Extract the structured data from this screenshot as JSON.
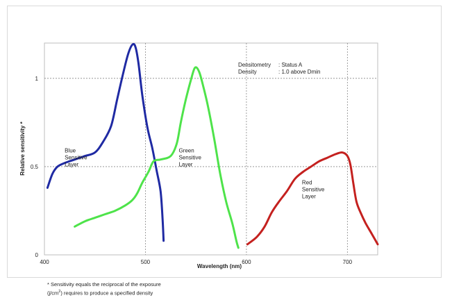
{
  "chart_data": {
    "type": "line",
    "title": "",
    "xlabel": "Wavelength (nm)",
    "ylabel": "Relative sensitivity *",
    "xlim": [
      400,
      730
    ],
    "ylim": [
      0,
      1.2
    ],
    "x_ticks": [
      400,
      500,
      600,
      700
    ],
    "x_tick_labels": [
      "400",
      "500",
      "600",
      "700"
    ],
    "y_ticks": [
      0,
      0.5,
      1
    ],
    "y_tick_labels": [
      "0",
      "0.5",
      "1"
    ],
    "grid": "dashed at 500, 600, 700 nm and at 0.5, 1",
    "notes": [
      {
        "key": "Densitometry",
        "value": ": Status A"
      },
      {
        "key": "Density",
        "value": ": 1.0 above  Dmin"
      }
    ],
    "series": [
      {
        "name": "Blue Sensitive Layer",
        "label_lines": [
          "Blue",
          "Sensitive",
          "Layer"
        ],
        "label_at": [
          420,
          0.58
        ],
        "color": "#1f2aa3",
        "points": [
          [
            403,
            0.38
          ],
          [
            408,
            0.46
          ],
          [
            413,
            0.5
          ],
          [
            420,
            0.52
          ],
          [
            430,
            0.54
          ],
          [
            440,
            0.56
          ],
          [
            450,
            0.58
          ],
          [
            458,
            0.64
          ],
          [
            466,
            0.73
          ],
          [
            472,
            0.88
          ],
          [
            478,
            1.03
          ],
          [
            483,
            1.14
          ],
          [
            487,
            1.19
          ],
          [
            490,
            1.18
          ],
          [
            493,
            1.09
          ],
          [
            497,
            0.9
          ],
          [
            502,
            0.72
          ],
          [
            507,
            0.6
          ],
          [
            511,
            0.48
          ],
          [
            515,
            0.36
          ],
          [
            517,
            0.2
          ],
          [
            518,
            0.08
          ]
        ]
      },
      {
        "name": "Green Sensitive Layer",
        "label_lines": [
          "Green",
          "Sensitive",
          "Layer"
        ],
        "label_at": [
          533,
          0.58
        ],
        "color": "#4ee34a",
        "points": [
          [
            430,
            0.16
          ],
          [
            440,
            0.19
          ],
          [
            450,
            0.21
          ],
          [
            460,
            0.23
          ],
          [
            470,
            0.25
          ],
          [
            480,
            0.28
          ],
          [
            487,
            0.31
          ],
          [
            492,
            0.35
          ],
          [
            497,
            0.41
          ],
          [
            503,
            0.47
          ],
          [
            508,
            0.53
          ],
          [
            515,
            0.54
          ],
          [
            525,
            0.56
          ],
          [
            531,
            0.63
          ],
          [
            535,
            0.75
          ],
          [
            540,
            0.88
          ],
          [
            545,
            0.99
          ],
          [
            549,
            1.06
          ],
          [
            553,
            1.04
          ],
          [
            557,
            0.96
          ],
          [
            562,
            0.84
          ],
          [
            568,
            0.66
          ],
          [
            574,
            0.46
          ],
          [
            580,
            0.3
          ],
          [
            586,
            0.18
          ],
          [
            590,
            0.08
          ],
          [
            592,
            0.04
          ]
        ]
      },
      {
        "name": "Red Sensitive Layer",
        "label_lines": [
          "Red",
          "Sensitive",
          "Layer"
        ],
        "label_at": [
          655,
          0.4
        ],
        "color": "#c4211f",
        "points": [
          [
            601,
            0.06
          ],
          [
            610,
            0.1
          ],
          [
            618,
            0.16
          ],
          [
            625,
            0.24
          ],
          [
            632,
            0.3
          ],
          [
            640,
            0.36
          ],
          [
            648,
            0.43
          ],
          [
            656,
            0.47
          ],
          [
            664,
            0.5
          ],
          [
            672,
            0.53
          ],
          [
            680,
            0.55
          ],
          [
            688,
            0.57
          ],
          [
            695,
            0.58
          ],
          [
            700,
            0.56
          ],
          [
            703,
            0.51
          ],
          [
            706,
            0.4
          ],
          [
            709,
            0.3
          ],
          [
            713,
            0.24
          ],
          [
            718,
            0.18
          ],
          [
            724,
            0.12
          ],
          [
            730,
            0.06
          ]
        ]
      }
    ]
  },
  "footnote": {
    "line1": "* Sensitivity equals the reciprocal of the exposure",
    "line2_prefix": "(j/cm",
    "line2_sup": "2",
    "line2_suffix": ") requires to produce a specified density"
  }
}
